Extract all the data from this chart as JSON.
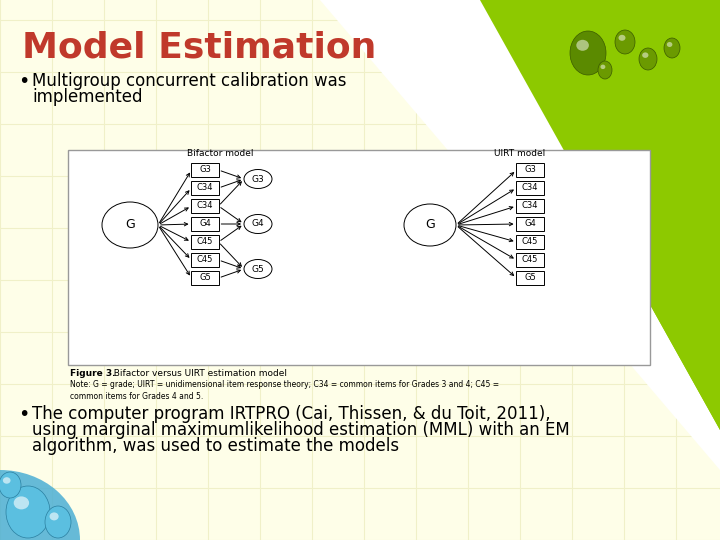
{
  "title": "Model Estimation",
  "title_color": "#C0392B",
  "title_fontsize": 26,
  "bg_color": "#FEFEE8",
  "grid_color": "#F0F0C8",
  "bullet1_line1": "Multigroup concurrent calibration was",
  "bullet1_line2": "implemented",
  "bullet2_line1": "The computer program IRTPRO (Cai, Thissen, & du Toit, 2011),",
  "bullet2_line2": "using marginal maximumlikelihood estimation (MML) with an EM",
  "bullet2_line3": "algorithm, was used to estimate the models",
  "bullet_fontsize": 12,
  "figure_caption_bold": "Figure 3.",
  "figure_caption_rest": "  Bifactor versus UIRT estimation model",
  "figure_note": "Note: G = grade; UIRT = unidimensional item response theory; C34 = common items for Grades 3 and 4; C45 =\ncommon items for Grades 4 and 5.",
  "green_color": "#8DC900",
  "blue_color": "#4BAFD4",
  "bifactor_items": [
    "G3",
    "C34",
    "C34",
    "G4",
    "C45",
    "C45",
    "G5"
  ],
  "uirt_items": [
    "G3",
    "C34",
    "C34",
    "G4",
    "C45",
    "C45",
    "G5"
  ],
  "subfactors": [
    "G3",
    "G4",
    "G5"
  ]
}
